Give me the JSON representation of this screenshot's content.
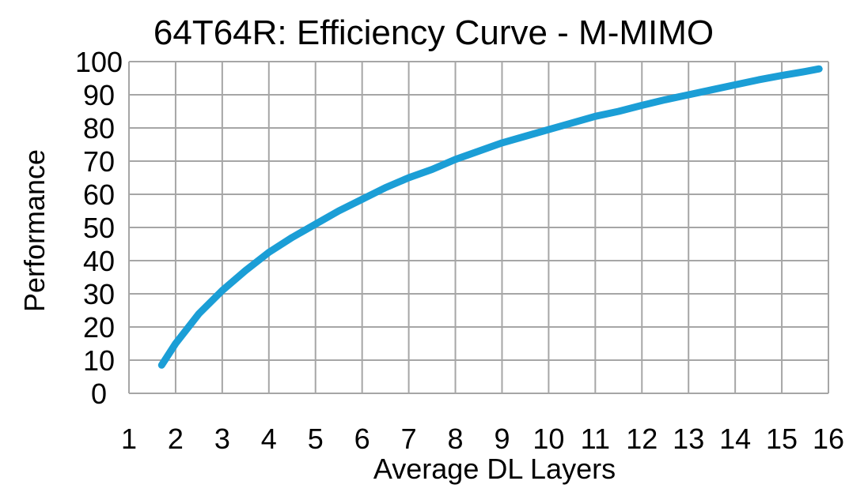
{
  "colors": {
    "background": "#ffffff",
    "grid": "#a6a6a6",
    "series": "#1b9ed6",
    "text": "#000000"
  },
  "chart_data": {
    "type": "line",
    "title": "64T64R: Efficiency Curve - M-MIMO",
    "xlabel": "Average DL Layers",
    "ylabel": "Performance",
    "xlim": [
      1,
      16
    ],
    "ylim": [
      0,
      100
    ],
    "x_ticks": [
      1,
      2,
      3,
      4,
      5,
      6,
      7,
      8,
      9,
      10,
      11,
      12,
      13,
      14,
      15,
      16
    ],
    "y_ticks": [
      0,
      10,
      20,
      30,
      40,
      50,
      60,
      70,
      80,
      90,
      100
    ],
    "x_tick_labels": [
      "1",
      "2",
      "3",
      "4",
      "5",
      "6",
      "7",
      "8",
      "9",
      "10",
      "11",
      "12",
      "13",
      "14",
      "15",
      "16"
    ],
    "y_tick_labels": [
      "0",
      "10",
      "20",
      "30",
      "40",
      "50",
      "60",
      "70",
      "80",
      "90",
      "100"
    ],
    "grid": true,
    "legend": "none",
    "series": [
      {
        "x": [
          1.7,
          2,
          2.5,
          3,
          3.5,
          4,
          4.5,
          5,
          5.5,
          6,
          6.5,
          7,
          7.5,
          8,
          8.5,
          9,
          9.5,
          10,
          10.5,
          11,
          11.5,
          12,
          12.5,
          13,
          13.5,
          14,
          14.5,
          15,
          15.5,
          15.8
        ],
        "y": [
          8.5,
          15,
          24,
          31,
          37,
          42.5,
          47,
          51,
          55,
          58.5,
          62,
          65,
          67.5,
          70.5,
          73,
          75.5,
          77.5,
          79.5,
          81.5,
          83.5,
          85,
          86.8,
          88.5,
          90,
          91.5,
          93,
          94.5,
          95.8,
          97,
          97.8
        ]
      }
    ]
  }
}
